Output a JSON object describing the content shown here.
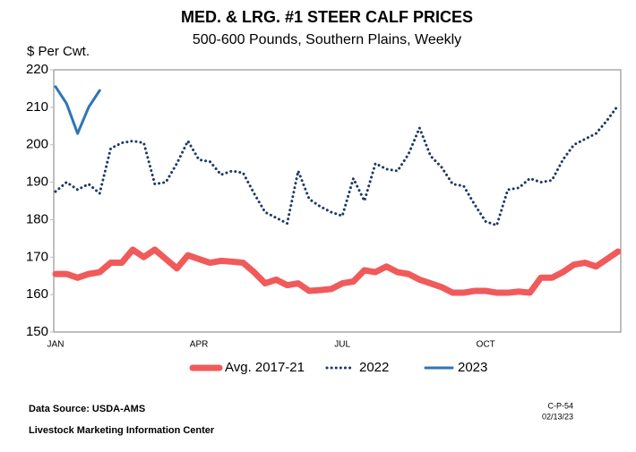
{
  "chart_data": {
    "type": "line",
    "title": "MED. & LRG. #1 STEER CALF PRICES",
    "subtitle": "500-600 Pounds, Southern Plains, Weekly",
    "y_label": "$ Per Cwt.",
    "categories": [
      "JAN",
      null,
      null,
      null,
      null,
      null,
      null,
      null,
      null,
      null,
      null,
      null,
      null,
      "APR",
      null,
      null,
      null,
      null,
      null,
      null,
      null,
      null,
      null,
      null,
      null,
      null,
      "JUL",
      null,
      null,
      null,
      null,
      null,
      null,
      null,
      null,
      null,
      null,
      null,
      null,
      "OCT",
      null,
      null,
      null,
      null,
      null,
      null,
      null,
      null,
      null,
      null,
      null,
      null
    ],
    "series": [
      {
        "name": "Avg. 2017-21",
        "color": "#f15a5a",
        "width": 7,
        "dash": "solid",
        "values": [
          165.5,
          165.5,
          164.5,
          165.5,
          166,
          168.5,
          168.5,
          172,
          170,
          172,
          169.5,
          167,
          170.5,
          169.5,
          168.5,
          169,
          168.8,
          168.5,
          166,
          163,
          164,
          162.5,
          163,
          161,
          161.2,
          161.5,
          163,
          163.5,
          166.5,
          166,
          167.5,
          166,
          165.5,
          164,
          163,
          162,
          160.5,
          160.5,
          161,
          161,
          160.5,
          160.5,
          160.8,
          160.5,
          164.5,
          164.5,
          166,
          168,
          168.5,
          167.5,
          169.5,
          171.5
        ]
      },
      {
        "name": "2022",
        "color": "#1f3864",
        "width": 3,
        "dash": "dotted",
        "values": [
          187.5,
          190,
          188,
          189.5,
          187,
          199,
          200.5,
          201,
          200.5,
          189.5,
          190,
          195,
          201,
          196,
          195.5,
          192,
          193,
          192.5,
          187,
          182,
          180.5,
          179,
          193,
          185.5,
          183.5,
          182,
          181,
          191,
          185,
          195,
          193.5,
          193,
          197.5,
          204.5,
          197,
          194,
          189.5,
          189,
          184,
          179.5,
          178.5,
          188,
          188.5,
          191,
          190,
          190.5,
          196,
          200,
          201.5,
          203,
          206.5,
          210.5
        ]
      },
      {
        "name": "2023",
        "color": "#2e75b6",
        "width": 3,
        "dash": "solid",
        "values": [
          215.5,
          211,
          203,
          210,
          214.5,
          null,
          null,
          null,
          null,
          null,
          null,
          null,
          null,
          null,
          null,
          null,
          null,
          null,
          null,
          null,
          null,
          null,
          null,
          null,
          null,
          null,
          null,
          null,
          null,
          null,
          null,
          null,
          null,
          null,
          null,
          null,
          null,
          null,
          null,
          null,
          null,
          null,
          null,
          null,
          null,
          null,
          null,
          null,
          null,
          null,
          null,
          null
        ]
      }
    ],
    "ylim": [
      150,
      220
    ],
    "yticks": [
      150,
      160,
      170,
      180,
      190,
      200,
      210,
      220
    ],
    "grid": false,
    "legend": "bottom",
    "source": "Data Source:  USDA-AMS",
    "org": "Livestock Marketing Information Center",
    "code": "C-P-54",
    "date": "02/13/23"
  }
}
